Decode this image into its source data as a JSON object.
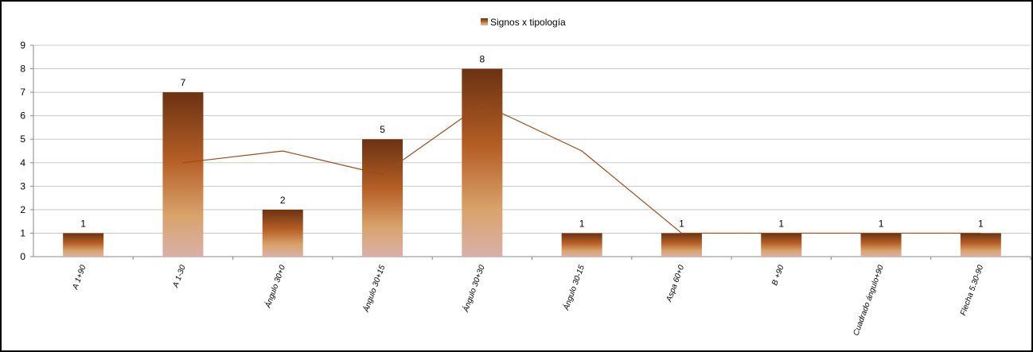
{
  "chart_data": {
    "type": "bar",
    "legend": {
      "label": "Signos x tipología",
      "position": "top"
    },
    "categories": [
      "A 1+90",
      "A 1-30",
      "Ángulo 30+0",
      "Ángulo 30+15",
      "Ángulo 30+30",
      "Ángulo 30-15",
      "Aspa 60+0",
      "B +90",
      "Cuadrado ángulo+90",
      "Flecha 5.30-90"
    ],
    "series": [
      {
        "name": "Signos x tipología",
        "values": [
          1,
          7,
          2,
          5,
          8,
          1,
          1,
          1,
          1,
          1
        ]
      }
    ],
    "trendline": {
      "type": "moving average",
      "period": 2,
      "values": [
        null,
        4,
        4.5,
        3.5,
        6.5,
        4.5,
        1,
        1,
        1,
        1
      ],
      "color": "#9c4a14"
    },
    "ylim": [
      0,
      9
    ],
    "yticks": [
      0,
      1,
      2,
      3,
      4,
      5,
      6,
      7,
      8,
      9
    ],
    "grid": true,
    "colors": {
      "bar_top": "#6b3212",
      "bar_mid": "#b65f26",
      "bar_low": "#d9a36c",
      "bar_bottom": "#d9b0a8",
      "grid": "#c8c8c8"
    }
  }
}
